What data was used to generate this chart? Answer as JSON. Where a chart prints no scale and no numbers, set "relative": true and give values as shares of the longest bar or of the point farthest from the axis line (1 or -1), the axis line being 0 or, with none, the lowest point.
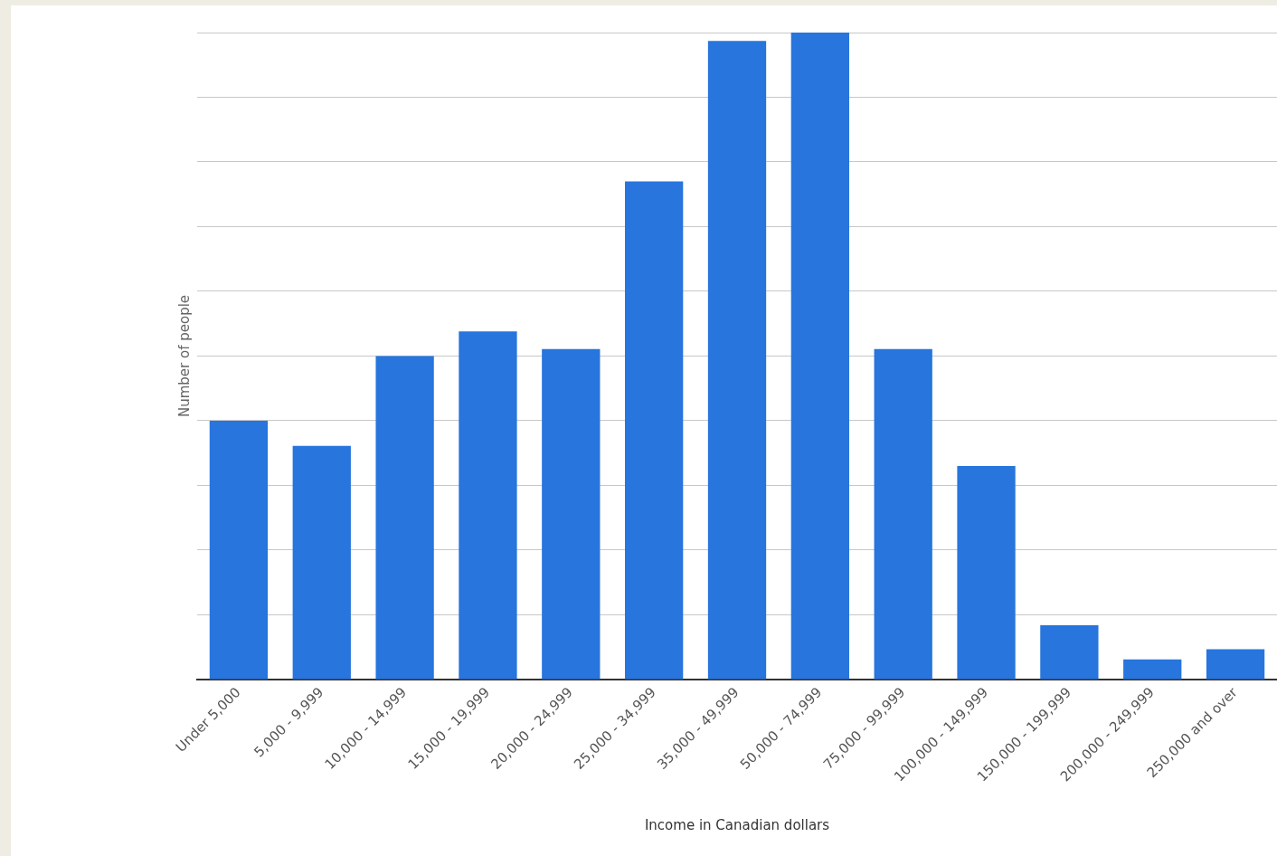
{
  "chart_data": {
    "type": "bar",
    "relative": true,
    "xlabel": "Income in Canadian dollars",
    "ylabel": "Number of people",
    "categories": [
      "Under 5,000",
      "5,000 - 9,999",
      "10,000 - 14,999",
      "15,000 - 19,999",
      "20,000 - 24,999",
      "25,000 - 34,999",
      "35,000 - 49,999",
      "50,000 - 74,999",
      "75,000 - 99,999",
      "100,000 - 149,999",
      "150,000 - 199,999",
      "200,000 - 249,999",
      "250,000 and over"
    ],
    "values": [
      0.4,
      0.361,
      0.5,
      0.538,
      0.511,
      0.77,
      0.987,
      1,
      0.511,
      0.33,
      0.084,
      0.031,
      0.047
    ],
    "color": "#2775dd",
    "grid": "y",
    "legend": false
  }
}
